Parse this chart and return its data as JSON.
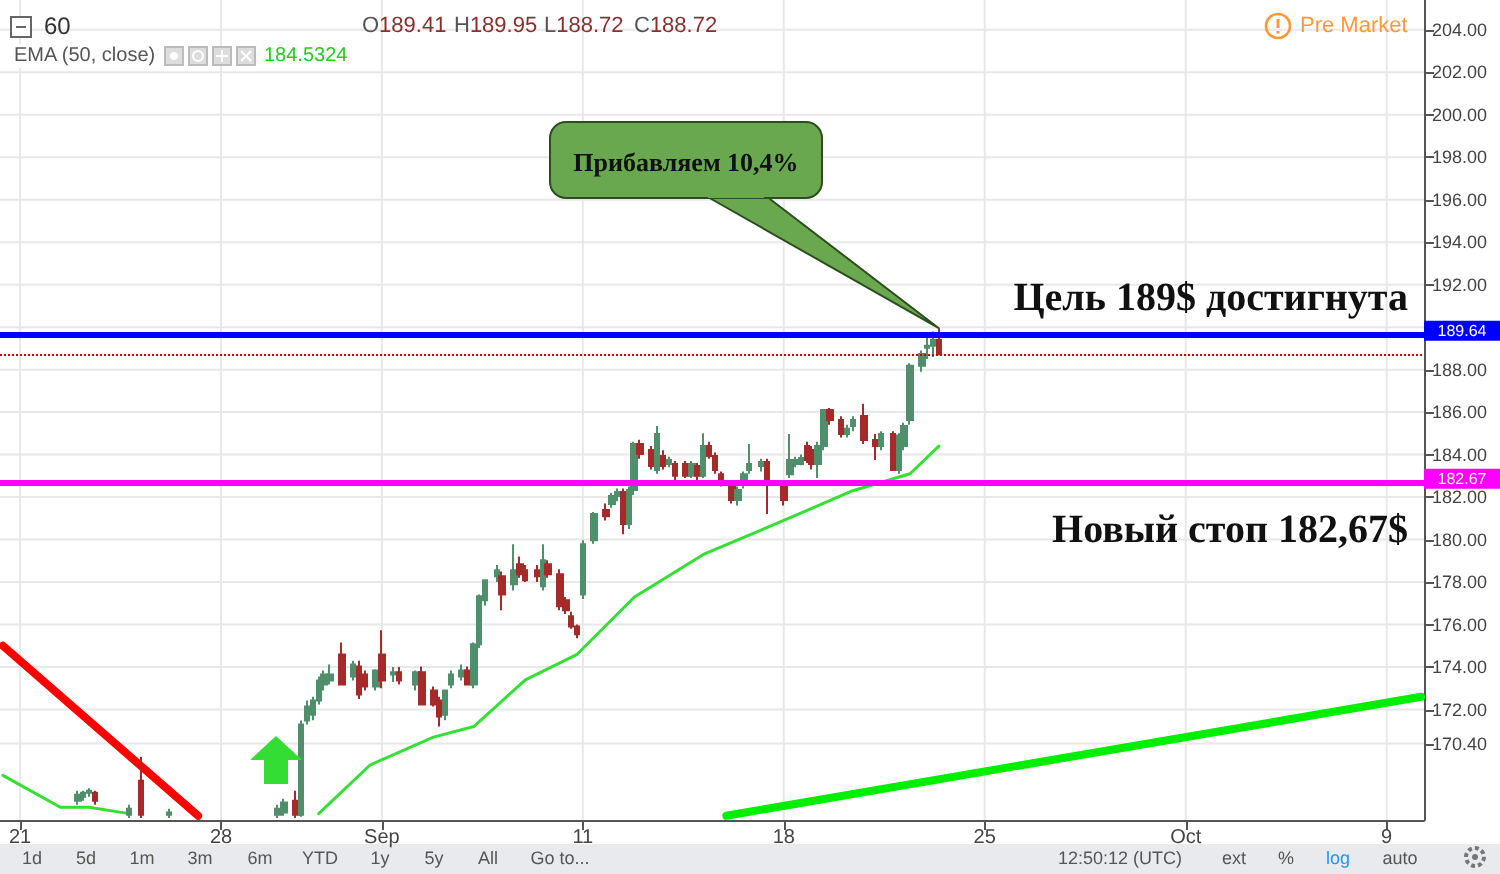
{
  "chart_data": {
    "type": "candlestick",
    "title": "60",
    "categories": [
      null,
      null,
      null,
      "21",
      null,
      null,
      null,
      null,
      null,
      null,
      null,
      null,
      null,
      null,
      null,
      null,
      null,
      null,
      null,
      null,
      null,
      null,
      null,
      null,
      null,
      null,
      null,
      null,
      null,
      null,
      null,
      null,
      null,
      null,
      null,
      null,
      null,
      null,
      "28",
      null,
      null,
      null,
      null,
      null,
      null,
      null,
      null,
      null,
      null,
      null,
      null,
      null,
      null,
      null,
      null,
      null,
      null,
      null,
      null,
      null,
      null,
      null,
      null,
      null,
      null,
      null,
      "Sep",
      null,
      null,
      null,
      null,
      null,
      null,
      null,
      null,
      null,
      null,
      null,
      null,
      null,
      null,
      null,
      null,
      null,
      null,
      null,
      null,
      null,
      null,
      null,
      null,
      null,
      null,
      null,
      null,
      null,
      null,
      null,
      null,
      null,
      null,
      "11",
      null,
      null,
      null,
      null,
      null,
      null,
      null,
      null,
      null,
      null,
      null,
      null,
      null,
      null,
      null,
      null,
      null,
      null,
      null,
      null,
      null,
      null,
      null,
      null,
      null,
      null,
      null,
      null,
      null,
      null,
      null,
      null,
      null,
      null,
      "18",
      null,
      null,
      null,
      null,
      null,
      null,
      null,
      null,
      null,
      null,
      null,
      null,
      null,
      null,
      null,
      null,
      null,
      null,
      null,
      null,
      null,
      null,
      null,
      null,
      null,
      null,
      null,
      null,
      null,
      null,
      null,
      null,
      null,
      null,
      "25",
      null,
      null,
      null,
      null,
      null,
      null,
      null,
      null,
      null,
      null,
      null,
      null,
      null,
      null,
      null,
      null,
      null,
      null,
      null,
      null,
      null,
      null,
      null,
      null,
      null,
      null,
      null,
      null,
      null,
      null,
      null,
      null,
      null,
      null,
      "Oct",
      null,
      null,
      null,
      null,
      null,
      null,
      null,
      null,
      null,
      null,
      null,
      null,
      null,
      null,
      null,
      null,
      null,
      null,
      null,
      null,
      null,
      null,
      null,
      null,
      null,
      null,
      null,
      null,
      null,
      null,
      null,
      null,
      null,
      null,
      "9",
      null,
      null,
      null,
      null,
      null,
      null
    ],
    "ylim": [
      166.8,
      205.4
    ],
    "yticks": [
      {
        "value": 170.4,
        "label": "170.40"
      },
      {
        "value": 172,
        "label": "172.00"
      },
      {
        "value": 174,
        "label": "174.00"
      },
      {
        "value": 176,
        "label": "176.00"
      },
      {
        "value": 178,
        "label": "178.00"
      },
      {
        "value": 180,
        "label": "180.00"
      },
      {
        "value": 182,
        "label": "182.00"
      },
      {
        "value": 184,
        "label": "184.00"
      },
      {
        "value": 186,
        "label": "186.00"
      },
      {
        "value": 188,
        "label": "188.00"
      },
      {
        "value": 190,
        "label": null
      },
      {
        "value": 192,
        "label": "192.00"
      },
      {
        "value": 194,
        "label": "194.00"
      },
      {
        "value": 196,
        "label": "196.00"
      },
      {
        "value": 198,
        "label": "198.00"
      },
      {
        "value": 200,
        "label": "200.00"
      },
      {
        "value": 202,
        "label": "202.00"
      },
      {
        "value": 204,
        "label": "204.00"
      }
    ],
    "grid": true,
    "series": [
      {
        "ohlc": [
          null,
          null,
          null,
          null,
          null,
          null,
          null,
          null,
          null,
          null,
          null,
          null,
          null,
          [
            167.71,
            168.18,
            167.52,
            167.99
          ],
          [
            167.9,
            168.18,
            167.71,
            168.08
          ],
          [
            168.08,
            168.3,
            167.9,
            168.18
          ],
          [
            168.08,
            168.18,
            167.52,
            167.71
          ],
          null,
          null,
          null,
          null,
          null,
          [
            167.05,
            167.52,
            166.9,
            167.33
          ],
          null,
          [
            168.65,
            169.78,
            166.9,
            167.05
          ],
          null,
          null,
          null,
          null,
          [
            167.05,
            167.33,
            166.9,
            167.15
          ],
          null,
          null,
          null,
          null,
          null,
          null,
          null,
          null,
          null,
          null,
          null,
          null,
          null,
          null,
          null,
          null,
          null,
          null,
          [
            167.05,
            167.52,
            166.9,
            167.33
          ],
          [
            167.15,
            167.8,
            167.0,
            167.62
          ],
          null,
          [
            167.71,
            168.18,
            166.9,
            167.05
          ],
          [
            167.05,
            171.48,
            166.95,
            171.29
          ],
          [
            171.48,
            172.42,
            171.29,
            172.14
          ],
          [
            171.76,
            172.6,
            171.5,
            172.42
          ],
          [
            172.42,
            173.56,
            172.24,
            173.37
          ],
          [
            173.18,
            173.84,
            172.9,
            173.65
          ],
          [
            173.37,
            174.12,
            173.18,
            173.65
          ],
          null,
          [
            174.59,
            175.16,
            173.18,
            173.18
          ],
          null,
          [
            173.56,
            174.3,
            173.37,
            174.12
          ],
          [
            174.03,
            174.3,
            172.5,
            172.71
          ],
          [
            173.65,
            173.84,
            172.9,
            173.08
          ],
          null,
          [
            173.08,
            173.9,
            172.9,
            173.84
          ],
          [
            174.59,
            175.73,
            173.0,
            173.37
          ],
          null,
          [
            173.65,
            174.0,
            173.3,
            173.75
          ],
          [
            173.75,
            174.0,
            173.18,
            173.37
          ],
          null,
          null,
          [
            173.18,
            173.84,
            172.9,
            173.75
          ],
          [
            173.75,
            174.03,
            172.24,
            172.24
          ],
          null,
          [
            172.9,
            173.08,
            172.14,
            172.24
          ],
          [
            172.42,
            172.6,
            171.2,
            171.67
          ],
          [
            171.76,
            172.9,
            171.5,
            172.9
          ],
          [
            173.18,
            173.84,
            173.0,
            173.65
          ],
          null,
          [
            173.56,
            174.12,
            173.37,
            173.84
          ],
          [
            173.84,
            174.03,
            173.18,
            173.18
          ],
          [
            173.18,
            175.16,
            173.0,
            175.07
          ],
          [
            175.07,
            177.42,
            174.9,
            177.33
          ],
          [
            177.14,
            178.09,
            176.9,
            178.09
          ],
          null,
          [
            178.27,
            178.8,
            178.0,
            178.56
          ],
          [
            178.27,
            178.5,
            176.67,
            177.42
          ],
          null,
          [
            177.9,
            179.78,
            177.6,
            178.56
          ],
          [
            178.84,
            179.2,
            178.2,
            178.37
          ],
          [
            178.56,
            178.8,
            178.0,
            178.09
          ],
          null,
          [
            178.56,
            178.8,
            178.0,
            178.27
          ],
          [
            177.8,
            179.78,
            177.6,
            179.03
          ],
          [
            178.84,
            179.03,
            178.2,
            178.37
          ],
          null,
          [
            178.37,
            178.6,
            176.67,
            176.86
          ],
          [
            177.14,
            177.3,
            176.5,
            176.67
          ],
          [
            176.39,
            176.6,
            175.8,
            175.91
          ],
          [
            175.91,
            176.0,
            175.35,
            175.54
          ],
          [
            177.42,
            179.97,
            177.2,
            179.78
          ],
          null,
          [
            179.97,
            181.3,
            179.8,
            181.2
          ],
          null,
          [
            181.39,
            181.7,
            180.9,
            181.1
          ],
          [
            181.67,
            182.2,
            181.5,
            182.05
          ],
          [
            182.05,
            182.4,
            181.8,
            182.24
          ],
          [
            182.24,
            182.4,
            180.25,
            180.73
          ],
          [
            180.73,
            182.5,
            180.5,
            182.33
          ],
          [
            182.33,
            184.6,
            182.1,
            184.5
          ],
          [
            184.5,
            184.7,
            183.8,
            184.03
          ],
          null,
          [
            184.22,
            184.4,
            183.3,
            183.46
          ],
          [
            183.27,
            185.35,
            183.1,
            184.97
          ],
          [
            183.93,
            184.2,
            183.3,
            183.46
          ],
          [
            183.56,
            183.9,
            183.4,
            183.75
          ],
          [
            183.56,
            183.7,
            182.8,
            183.0
          ],
          null,
          [
            183.56,
            183.7,
            182.9,
            183.0
          ],
          [
            183.0,
            183.7,
            182.9,
            183.56
          ],
          [
            183.46,
            183.6,
            182.8,
            183.0
          ],
          [
            183.0,
            185.0,
            182.9,
            184.4
          ],
          [
            184.4,
            184.6,
            183.8,
            183.93
          ],
          [
            183.93,
            184.1,
            183.1,
            183.27
          ],
          [
            183.08,
            183.2,
            182.5,
            182.61
          ],
          null,
          [
            182.61,
            182.8,
            181.7,
            181.86
          ],
          [
            181.86,
            182.5,
            181.6,
            182.33
          ],
          [
            182.61,
            183.2,
            182.4,
            183.08
          ],
          [
            183.27,
            184.5,
            183.1,
            183.56
          ],
          null,
          [
            183.46,
            183.8,
            183.2,
            183.65
          ],
          [
            183.65,
            183.8,
            181.2,
            182.61
          ],
          null,
          null,
          [
            182.61,
            182.7,
            181.6,
            181.86
          ],
          [
            183.08,
            184.97,
            182.9,
            183.75
          ],
          [
            183.56,
            183.9,
            183.4,
            183.75
          ],
          [
            183.56,
            184.0,
            183.5,
            183.84
          ],
          [
            184.4,
            184.6,
            183.6,
            183.75
          ],
          [
            184.22,
            184.4,
            183.3,
            183.56
          ],
          [
            183.56,
            184.6,
            182.9,
            184.4
          ],
          [
            184.4,
            186.1,
            184.2,
            186.1
          ],
          [
            186.1,
            186.2,
            185.4,
            185.63
          ],
          null,
          [
            185.63,
            185.8,
            184.8,
            184.97
          ],
          [
            184.97,
            185.4,
            184.8,
            185.22
          ],
          [
            185.35,
            185.8,
            185.1,
            185.63
          ],
          null,
          [
            185.82,
            186.4,
            184.5,
            184.69
          ],
          null,
          [
            184.69,
            184.97,
            183.75,
            184.4
          ],
          [
            184.4,
            185.1,
            184.2,
            184.97
          ],
          null,
          [
            184.97,
            185.1,
            183.27,
            183.27
          ],
          [
            183.27,
            185.0,
            183.1,
            184.9
          ],
          [
            184.4,
            185.5,
            184.2,
            185.35
          ],
          [
            185.63,
            188.3,
            185.4,
            188.18
          ],
          null,
          [
            188.18,
            188.9,
            187.9,
            188.74
          ],
          [
            189.03,
            189.5,
            188.5,
            189.12
          ],
          [
            189.12,
            189.8,
            188.6,
            189.41
          ],
          [
            189.41,
            189.95,
            188.72,
            188.72
          ],
          null,
          null,
          null,
          null,
          null,
          null,
          null,
          null,
          null,
          null,
          null,
          null,
          null,
          null,
          null,
          null,
          null,
          null,
          null,
          null,
          null,
          null,
          null,
          null,
          null,
          null,
          null,
          null,
          null,
          null,
          null,
          null,
          null,
          null,
          null,
          null,
          null,
          null,
          null,
          null,
          null,
          null,
          null,
          null,
          null,
          null,
          null,
          null,
          null,
          null,
          null,
          null,
          null,
          null,
          null,
          null,
          null,
          null,
          null,
          null,
          null,
          null,
          null,
          null,
          null,
          null,
          null,
          null,
          null,
          null,
          null,
          null,
          null,
          null,
          null,
          null,
          null,
          null,
          null,
          null,
          null,
          null,
          null,
          null
        ],
        "colors": [
          null,
          null,
          null,
          null,
          null,
          null,
          null,
          null,
          null,
          null,
          null,
          null,
          null,
          "#4f8f6b",
          "#4f8f6b",
          "#4f8f6b",
          "#a52a2a",
          null,
          null,
          null,
          null,
          null,
          "#4f8f6b",
          null,
          "#a52a2a",
          null,
          null,
          null,
          null,
          "#4f8f6b",
          null,
          null,
          null,
          null,
          null,
          null,
          null,
          null,
          null,
          null,
          null,
          null,
          null,
          null,
          null,
          null,
          null,
          null,
          "#4f8f6b",
          "#4f8f6b",
          null,
          "#a52a2a",
          "#4f8f6b",
          "#4f8f6b",
          "#4f8f6b",
          "#4f8f6b",
          "#4f8f6b",
          "#4f8f6b",
          null,
          "#a52a2a",
          null,
          "#4f8f6b",
          "#a52a2a",
          "#a52a2a",
          null,
          "#4f8f6b",
          "#a52a2a",
          null,
          "#4f8f6b",
          "#a52a2a",
          null,
          null,
          "#4f8f6b",
          "#a52a2a",
          null,
          "#a52a2a",
          "#a52a2a",
          "#4f8f6b",
          "#4f8f6b",
          null,
          "#4f8f6b",
          "#a52a2a",
          "#4f8f6b",
          "#4f8f6b",
          "#4f8f6b",
          null,
          "#4f8f6b",
          "#a52a2a",
          null,
          "#4f8f6b",
          "#a52a2a",
          "#a52a2a",
          null,
          "#a52a2a",
          "#4f8f6b",
          "#a52a2a",
          null,
          "#a52a2a",
          "#a52a2a",
          "#a52a2a",
          "#a52a2a",
          "#4f8f6b",
          null,
          "#4f8f6b",
          null,
          "#a52a2a",
          "#4f8f6b",
          "#4f8f6b",
          "#a52a2a",
          "#4f8f6b",
          "#4f8f6b",
          "#a52a2a",
          null,
          "#a52a2a",
          "#4f8f6b",
          "#a52a2a",
          "#4f8f6b",
          "#a52a2a",
          null,
          "#a52a2a",
          "#4f8f6b",
          "#a52a2a",
          "#4f8f6b",
          "#a52a2a",
          "#a52a2a",
          "#a52a2a",
          null,
          "#a52a2a",
          "#4f8f6b",
          "#4f8f6b",
          "#4f8f6b",
          null,
          "#4f8f6b",
          "#a52a2a",
          null,
          null,
          "#a52a2a",
          "#4f8f6b",
          "#4f8f6b",
          "#4f8f6b",
          "#a52a2a",
          "#a52a2a",
          "#4f8f6b",
          "#4f8f6b",
          "#a52a2a",
          null,
          "#a52a2a",
          "#4f8f6b",
          "#4f8f6b",
          null,
          "#a52a2a",
          null,
          "#a52a2a",
          "#4f8f6b",
          null,
          "#a52a2a",
          "#4f8f6b",
          "#4f8f6b",
          "#4f8f6b",
          null,
          "#4f8f6b",
          "#4f8f6b",
          "#4f8f6b",
          "#a52a2a",
          null,
          null,
          null,
          null,
          null,
          null,
          null,
          null,
          null,
          null,
          null,
          null,
          null,
          null,
          null,
          null,
          null,
          null,
          null,
          null,
          null,
          null,
          null,
          null,
          null,
          null,
          null,
          null,
          null,
          null,
          null,
          null,
          null,
          null,
          null,
          null,
          null,
          null,
          null,
          null,
          null,
          null,
          null,
          null,
          null,
          null,
          null,
          null,
          null,
          null,
          null,
          null,
          null,
          null,
          null,
          null,
          null,
          null,
          null,
          null,
          null,
          null,
          null,
          null,
          null,
          null,
          null,
          null,
          null,
          null,
          null,
          null,
          null,
          null,
          null,
          null,
          null,
          null,
          null,
          null,
          null,
          null,
          null,
          null
        ]
      },
      {
        "type": "line",
        "color": "#33e033",
        "values": [
          168.9,
          null,
          null,
          null,
          null,
          null,
          null,
          null,
          null,
          null,
          167.4,
          null,
          null,
          null,
          null,
          167.4,
          null,
          null,
          null,
          null,
          null,
          null,
          167.1,
          null,
          null,
          null,
          null,
          null,
          null,
          null,
          null,
          null,
          null,
          null,
          null,
          null,
          null,
          null,
          null,
          null,
          null,
          null,
          null,
          null,
          null,
          null,
          null,
          null,
          null,
          null,
          null,
          null,
          null,
          null,
          null,
          null,
          null,
          null,
          null,
          null,
          null,
          null,
          null,
          null,
          null,
          null,
          null,
          null,
          null,
          null,
          null,
          null,
          null,
          null,
          null,
          null,
          null,
          null,
          null,
          null,
          null,
          null,
          null,
          null,
          null,
          null,
          null,
          null,
          null,
          null,
          null,
          null,
          null,
          null,
          null,
          null,
          null,
          null,
          null,
          null,
          null,
          null,
          null,
          null,
          null,
          null,
          null,
          null,
          null,
          null,
          null,
          null,
          null,
          null,
          null,
          null,
          null,
          null,
          null,
          null,
          null,
          null,
          null,
          null,
          null,
          null,
          null,
          null,
          null,
          null,
          null,
          null,
          null,
          null,
          null,
          null,
          null,
          null,
          null,
          null,
          null,
          null,
          null,
          null,
          null,
          null,
          null,
          null,
          null,
          null,
          null,
          null,
          null,
          null,
          null,
          null,
          null,
          null,
          null,
          null,
          null,
          null,
          null,
          null,
          null,
          null,
          null,
          null,
          null,
          null,
          null,
          null,
          null,
          null,
          null,
          null,
          null,
          null,
          null,
          null,
          null,
          null,
          null,
          null,
          null,
          null,
          null,
          null,
          null,
          null,
          null,
          null,
          null,
          null,
          null,
          null,
          null,
          null,
          null,
          null,
          null,
          null,
          null,
          null,
          null,
          null,
          null,
          null,
          null,
          null,
          null,
          null,
          null,
          null,
          null,
          null,
          null,
          null,
          null,
          null,
          null,
          null,
          null,
          null,
          null,
          null,
          null,
          null,
          null,
          null,
          null,
          null,
          null,
          null,
          null,
          null,
          null,
          null,
          null,
          null,
          null,
          null,
          null,
          null,
          null,
          null,
          null,
          null
        ]
      },
      {
        "type": "line",
        "color": "#33e033",
        "values": [
          null,
          null,
          null,
          null,
          null,
          null,
          null,
          null,
          null,
          null,
          null,
          null,
          null,
          null,
          null,
          null,
          null,
          null,
          null,
          null,
          null,
          null,
          null,
          null,
          null,
          null,
          null,
          null,
          null,
          null,
          null,
          null,
          null,
          null,
          null,
          null,
          null,
          null,
          null,
          null,
          null,
          null,
          null,
          null,
          null,
          null,
          null,
          null,
          null,
          null,
          null,
          null,
          null,
          null,
          null,
          167.1,
          null,
          null,
          null,
          null,
          null,
          null,
          null,
          null,
          169.4,
          null,
          null,
          null,
          null,
          null,
          null,
          null,
          null,
          null,
          null,
          170.7,
          null,
          null,
          null,
          null,
          null,
          null,
          171.2,
          null,
          null,
          null,
          null,
          null,
          null,
          null,
          null,
          173.4,
          null,
          null,
          null,
          null,
          null,
          null,
          null,
          null,
          174.6,
          null,
          null,
          null,
          null,
          null,
          null,
          null,
          null,
          null,
          177.3,
          null,
          null,
          null,
          null,
          null,
          null,
          null,
          null,
          null,
          null,
          null,
          179.3,
          null,
          null,
          null,
          null,
          null,
          null,
          null,
          null,
          null,
          null,
          null,
          null,
          null,
          180.9,
          null,
          null,
          null,
          null,
          null,
          null,
          null,
          null,
          null,
          null,
          null,
          182.3,
          null,
          null,
          null,
          null,
          null,
          null,
          null,
          null,
          null,
          183.1,
          null,
          null,
          null,
          null,
          184.4,
          null,
          null,
          null,
          null,
          null,
          null,
          null,
          null,
          null,
          null,
          null,
          null,
          null,
          null,
          null,
          null,
          null,
          null,
          null,
          null,
          null,
          null,
          null,
          null,
          null,
          null,
          null,
          null,
          null,
          null,
          null,
          null,
          null,
          null,
          null,
          null,
          null,
          null,
          null,
          null,
          null,
          null,
          null,
          null,
          null,
          null,
          null,
          null,
          null,
          null,
          null,
          null,
          null,
          null,
          null,
          null,
          null,
          null,
          null,
          null,
          null,
          null,
          null,
          null,
          null,
          null,
          null,
          null,
          null,
          null,
          null,
          null,
          null,
          null,
          null,
          null,
          null,
          null,
          null,
          null,
          null,
          null,
          null,
          null
        ]
      },
      {
        "type": "line",
        "color": "#ff0000",
        "values": [
          175.0,
          null,
          null,
          null,
          null,
          null,
          null,
          null,
          null,
          null,
          null,
          null,
          null,
          null,
          null,
          null,
          null,
          null,
          null,
          null,
          null,
          null,
          null,
          null,
          null,
          null,
          null,
          null,
          null,
          null,
          null,
          null,
          null,
          null,
          167.0,
          null,
          null,
          null,
          null,
          null,
          null,
          null,
          null,
          null,
          null,
          null,
          null,
          null,
          null,
          null,
          null,
          null,
          null,
          null,
          null,
          null,
          null,
          null,
          null,
          null,
          null,
          null,
          null,
          null,
          null,
          null,
          null,
          null,
          null,
          null,
          null,
          null,
          null,
          null,
          null,
          null,
          null,
          null,
          null,
          null,
          null,
          null,
          null,
          null,
          null,
          null,
          null,
          null,
          null,
          null,
          null,
          null,
          null,
          null,
          null,
          null,
          null,
          null,
          null,
          null,
          null,
          null,
          null,
          null,
          null,
          null,
          null,
          null,
          null,
          null,
          null,
          null,
          null,
          null,
          null,
          null,
          null,
          null,
          null,
          null,
          null,
          null,
          null,
          null,
          null,
          null,
          null,
          null,
          null,
          null,
          null,
          null,
          null,
          null,
          null,
          null,
          null,
          null,
          null,
          null,
          null,
          null,
          null,
          null,
          null,
          null,
          null,
          null,
          null,
          null,
          null,
          null,
          null,
          null,
          null,
          null,
          null,
          null,
          null,
          null,
          null,
          null,
          null,
          null,
          null,
          null,
          null,
          null,
          null,
          null,
          null,
          null,
          null,
          null,
          null,
          null,
          null,
          null,
          null,
          null,
          null,
          null,
          null,
          null,
          null,
          null,
          null,
          null,
          null,
          null,
          null,
          null,
          null,
          null,
          null,
          null,
          null,
          null,
          null,
          null,
          null,
          null,
          null,
          null,
          null,
          null,
          null,
          null,
          null,
          null,
          null,
          null,
          null,
          null,
          null,
          null,
          null,
          null,
          null,
          null,
          null,
          null,
          null,
          null,
          null,
          null,
          null,
          null,
          null,
          null,
          null,
          null,
          null,
          null,
          null,
          null,
          null,
          null,
          null,
          null,
          null,
          null,
          null,
          null,
          null,
          null,
          null,
          null
        ]
      },
      {
        "type": "line",
        "color": "#00ee00",
        "values": [
          null,
          null,
          null,
          null,
          null,
          null,
          null,
          null,
          null,
          null,
          null,
          null,
          null,
          null,
          null,
          null,
          null,
          null,
          null,
          null,
          null,
          null,
          null,
          null,
          null,
          null,
          null,
          null,
          null,
          null,
          null,
          null,
          null,
          null,
          null,
          null,
          null,
          null,
          null,
          null,
          null,
          null,
          null,
          null,
          null,
          null,
          null,
          null,
          null,
          null,
          null,
          null,
          null,
          null,
          null,
          null,
          null,
          null,
          null,
          null,
          null,
          null,
          null,
          null,
          null,
          null,
          null,
          null,
          null,
          null,
          null,
          null,
          null,
          null,
          null,
          null,
          null,
          null,
          null,
          null,
          null,
          null,
          null,
          null,
          null,
          null,
          null,
          null,
          null,
          null,
          null,
          null,
          null,
          null,
          null,
          null,
          null,
          null,
          null,
          null,
          null,
          null,
          null,
          null,
          null,
          null,
          null,
          null,
          null,
          null,
          null,
          null,
          null,
          null,
          null,
          null,
          null,
          null,
          null,
          null,
          null,
          null,
          null,
          null,
          null,
          null,
          167.0,
          null,
          null,
          null,
          null,
          null,
          null,
          null,
          null,
          null,
          null,
          null,
          null,
          null,
          null,
          null,
          null,
          null,
          null,
          null,
          null,
          null,
          null,
          null,
          null,
          null,
          null,
          null,
          null,
          null,
          null,
          null,
          null,
          null,
          null,
          null,
          null,
          null,
          null,
          null,
          null,
          null,
          null,
          null,
          null,
          null,
          null,
          null,
          null,
          null,
          null,
          null,
          null,
          null,
          null,
          null,
          null,
          null,
          null,
          null,
          null,
          null,
          null,
          null,
          null,
          null,
          null,
          null,
          null,
          null,
          null,
          null,
          null,
          null,
          null,
          null,
          null,
          null,
          null,
          null,
          null,
          null,
          null,
          null,
          null,
          null,
          null,
          null,
          null,
          null,
          null,
          null,
          null,
          null,
          null,
          null,
          null,
          null,
          null,
          null,
          null,
          null,
          null,
          null,
          null,
          null,
          null,
          null,
          null,
          null,
          null,
          null,
          null,
          null,
          null,
          null,
          null,
          null,
          null,
          null,
          null,
          172.6
        ]
      }
    ],
    "ref_lines": [
      {
        "axis": "y",
        "value": 189.64,
        "label": "189.64",
        "color": "#0000ff"
      },
      {
        "axis": "y",
        "value": 182.67,
        "label": "182.67",
        "color": "#ff00ff"
      },
      {
        "axis": "y",
        "value": 188.72,
        "color": "#cc0000",
        "line_style": "dotted"
      }
    ],
    "annotations": [
      "O189.41",
      "H189.95",
      "L188.72",
      "C188.72",
      "EMA (50, close)",
      "184.5324",
      "Pre Market",
      "Прибавляем 10,4%",
      "1d",
      "5d",
      "1m",
      "3m",
      "6m",
      "YTD",
      "1y",
      "5y",
      "All",
      "Go to...",
      "12:50:12 (UTC)",
      "ext",
      "%",
      "log",
      "auto",
      "Цель 189$ достигнута",
      "Новый стоп 182,67$"
    ]
  }
}
